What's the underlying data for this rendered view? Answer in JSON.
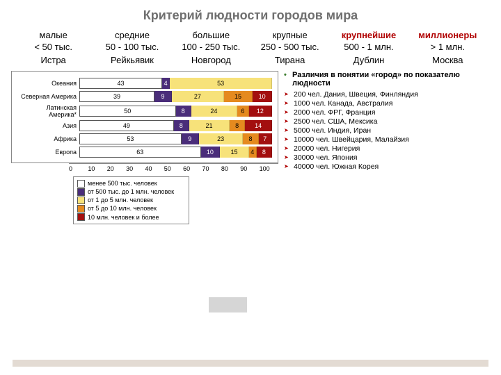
{
  "title": "Критерий людности городов мира",
  "categories": [
    {
      "name": "малые",
      "range": "< 50 тыс.",
      "example": "Истра",
      "red": false
    },
    {
      "name": "средние",
      "range": "50 - 100 тыс.",
      "example": "Рейкьявик",
      "red": false
    },
    {
      "name": "большие",
      "range": "100 - 250 тыс.",
      "example": "Новгород",
      "red": false
    },
    {
      "name": "крупные",
      "range": "250 - 500 тыс.",
      "example": "Тирана",
      "red": false
    },
    {
      "name": "крупнейшие",
      "range": "500 - 1 млн.",
      "example": "Дублин",
      "red": true
    },
    {
      "name": "миллионеры",
      "range": "> 1 млн.",
      "example": "Москва",
      "red": true
    }
  ],
  "chart": {
    "type": "stacked-bar-100",
    "colors": {
      "менее 500 тыс. человек": "#ffffff",
      "от 500 тыс. до 1 млн. человек": "#4a2d7a",
      "от 1 до 5 млн. человек": "#f7e27a",
      "от 5 до 10 млн. человек": "#e58a1f",
      "10 млн. человек и более": "#a30f0f"
    },
    "border_color": "#888888",
    "grid_color": "#bbbbbb",
    "xlim": [
      0,
      100
    ],
    "xtick_step": 10,
    "rows": [
      {
        "label": "Океания",
        "values": [
          43,
          4,
          53,
          0,
          0
        ]
      },
      {
        "label": "Северная Америка",
        "values": [
          39,
          9,
          27,
          15,
          10
        ]
      },
      {
        "label": "Латинская Америка*",
        "values": [
          50,
          8,
          24,
          6,
          12
        ]
      },
      {
        "label": "Азия",
        "values": [
          49,
          8,
          21,
          8,
          14
        ]
      },
      {
        "label": "Африка",
        "values": [
          53,
          9,
          23,
          8,
          7
        ]
      },
      {
        "label": "Европа",
        "values": [
          63,
          10,
          15,
          4,
          8
        ]
      }
    ],
    "legend": [
      "менее 500 тыс. человек",
      "от 500 тыс. до 1 млн. человек",
      "от 1 до 5 млн. человек",
      "от 5 до 10 млн. человек",
      "10 млн. человек и более"
    ]
  },
  "side": {
    "heading": "Различия в понятии «город» по показателю людности",
    "items": [
      "200 чел.   Дания, Швеция, Финляндия",
      "1000 чел.  Канада, Австралия",
      "2000 чел.  ФРГ, Франция",
      "2500 чел.  США, Мексика",
      "5000 чел.  Индия, Иран",
      "10000 чел. Швейцария, Малайзия",
      "20000 чел. Нигерия",
      "30000 чел. Япония",
      "40000 чел. Южная Корея"
    ]
  }
}
